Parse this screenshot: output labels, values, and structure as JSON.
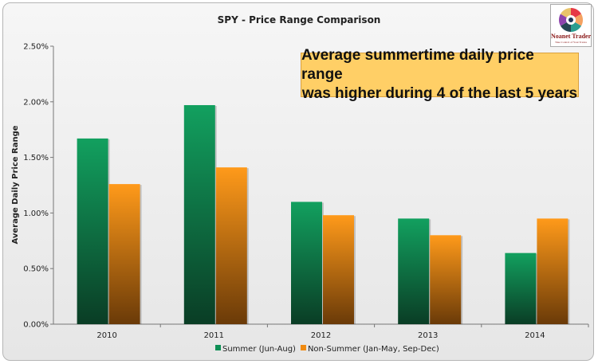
{
  "chart_data": {
    "type": "bar",
    "title": "SPY - Price Range Comparison",
    "ylabel": "Average Daily Price Range",
    "xlabel": "",
    "categories": [
      "2010",
      "2011",
      "2012",
      "2013",
      "2014"
    ],
    "series": [
      {
        "name": "Summer (Jun-Aug)",
        "values": [
          1.67,
          1.97,
          1.1,
          0.95,
          0.64
        ]
      },
      {
        "name": "Non-Summer (Jan-May, Sep-Dec)",
        "values": [
          1.26,
          1.41,
          0.98,
          0.8,
          0.95
        ]
      }
    ],
    "ylim": [
      0,
      2.5
    ],
    "yticks": [
      "0.00%",
      "0.50%",
      "1.00%",
      "1.50%",
      "2.00%",
      "2.50%"
    ],
    "grid": false,
    "legend_position": "bottom",
    "annotation": [
      "Average summertime daily price range",
      "was higher during 4 of the last 5 years"
    ]
  },
  "logo": {
    "name": "Noanet Trader",
    "tagline": "Take Control of Your Trades"
  },
  "colors": {
    "summer": "#0e8f55",
    "summer_dark": "#0a3d25",
    "nonsummer": "#f08a10",
    "nonsummer_dark": "#6a3a08",
    "callout": "#ffcf66"
  }
}
